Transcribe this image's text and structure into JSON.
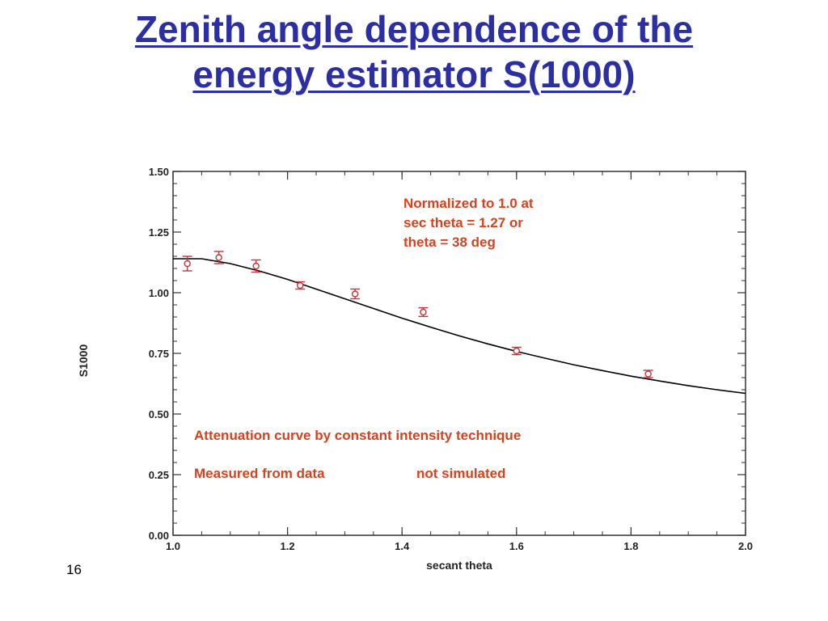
{
  "slide": {
    "title_line1": "Zenith angle dependence of the",
    "title_line2": "energy estimator S(1000)",
    "page_number": "16"
  },
  "chart_data": {
    "type": "scatter",
    "title": "",
    "xlabel": "secant theta",
    "ylabel": "S1000",
    "xlim": [
      1.0,
      2.0
    ],
    "ylim": [
      0.0,
      1.5
    ],
    "x_ticks": [
      "1.0",
      "1.2",
      "1.4",
      "1.6",
      "1.8",
      "2.0"
    ],
    "y_ticks": [
      "0.00",
      "0.25",
      "0.50",
      "0.75",
      "1.00",
      "1.25",
      "1.50"
    ],
    "grid": false,
    "colors": {
      "points": "#c8323c",
      "curve": "#000000",
      "annotation": "#d9401c",
      "title": "#2b2fa3"
    },
    "series": [
      {
        "kind": "points_with_error_bars",
        "x": [
          1.025,
          1.08,
          1.145,
          1.222,
          1.318,
          1.437,
          1.6,
          1.83
        ],
        "y": [
          1.12,
          1.145,
          1.11,
          1.03,
          0.995,
          0.92,
          0.76,
          0.665
        ],
        "err": [
          0.03,
          0.025,
          0.025,
          0.015,
          0.02,
          0.018,
          0.015,
          0.015
        ]
      },
      {
        "kind": "fit_curve",
        "x": [
          1.0,
          1.05,
          1.1,
          1.15,
          1.2,
          1.25,
          1.3,
          1.35,
          1.4,
          1.45,
          1.5,
          1.55,
          1.6,
          1.65,
          1.7,
          1.75,
          1.8,
          1.85,
          1.9,
          1.95,
          2.0
        ],
        "y": [
          1.14,
          1.14,
          1.12,
          1.09,
          1.055,
          1.015,
          0.975,
          0.935,
          0.895,
          0.858,
          0.822,
          0.789,
          0.758,
          0.73,
          0.703,
          0.679,
          0.656,
          0.636,
          0.617,
          0.6,
          0.585
        ]
      }
    ],
    "annotations": {
      "normalization_line1": "Normalized to 1.0 at",
      "normalization_line2": "sec theta = 1.27 or",
      "normalization_line3": "theta = 38 deg",
      "method": "Attenuation curve by constant intensity technique",
      "measured": "Measured from data",
      "not_simulated": "not simulated"
    }
  }
}
